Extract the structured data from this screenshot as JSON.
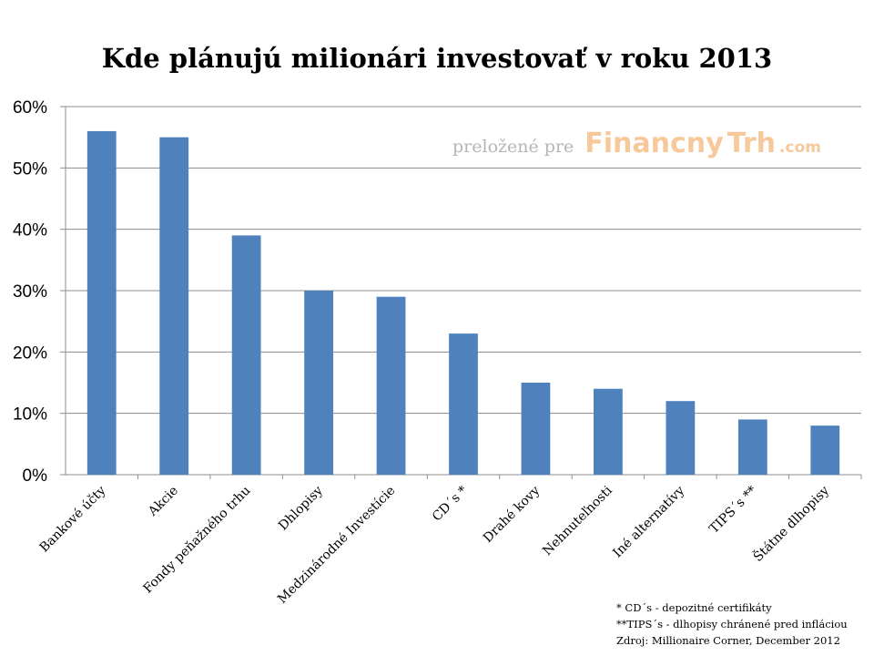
{
  "chart_data": {
    "type": "bar",
    "title": "Kde plánujú milionári investovať v roku 2013",
    "xlabel": "",
    "ylabel": "",
    "categories": [
      "Bankové účty",
      "Akcie",
      "Fondy peňažného trhu",
      "Dhlopisy",
      "Medzinárodné Investície",
      "CD´s *",
      "Drahé kovy",
      "Nehnuteľnosti",
      "Iné alternatívy",
      "TIPS´s **",
      "Štátne dlhopisy"
    ],
    "values": [
      56,
      55,
      39,
      30,
      29,
      23,
      15,
      14,
      12,
      9,
      8
    ],
    "ylim": [
      0,
      60
    ],
    "yticks": [
      "0%",
      "10%",
      "20%",
      "30%",
      "40%",
      "50%",
      "60%"
    ],
    "grid": true,
    "legend": "none",
    "bar_color": "#4f81bd"
  },
  "watermark": {
    "prefix": "preložené pre",
    "brand_part1": "Financny",
    "brand_part2": "Trh",
    "domain": ".com"
  },
  "notes": [
    "* CD´s  - depozitné certifikáty",
    "**TIPS´s - dlhopisy chránené pred infláciou",
    "Zdroj: Millionaire Corner, December 2012"
  ]
}
